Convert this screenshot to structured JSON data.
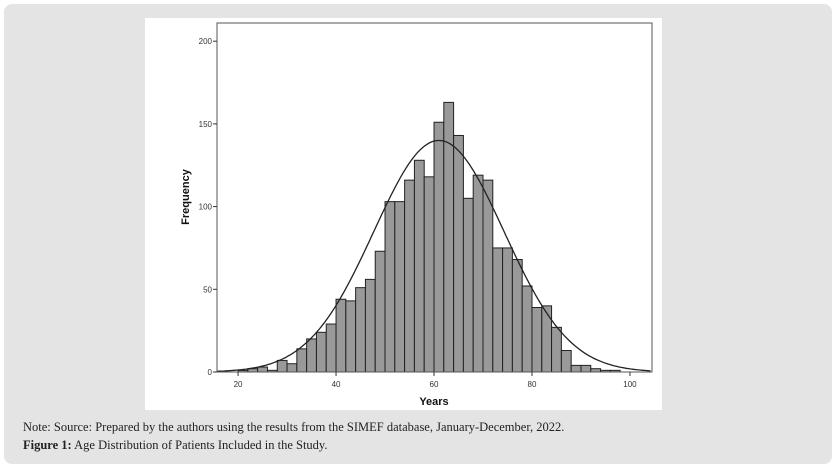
{
  "chart_data": {
    "type": "histogram",
    "title": "",
    "xlabel": "Years",
    "ylabel": "Frequency",
    "xlim": [
      15.7,
      104.5
    ],
    "ylim": [
      0,
      211
    ],
    "xticks": [
      20,
      40,
      60,
      80,
      100
    ],
    "yticks": [
      0,
      50,
      100,
      150,
      200
    ],
    "bin_width": 2,
    "bins_start": [
      18,
      20,
      22,
      24,
      26,
      28,
      30,
      32,
      34,
      36,
      38,
      40,
      42,
      44,
      46,
      48,
      50,
      52,
      54,
      56,
      58,
      60,
      62,
      64,
      66,
      68,
      70,
      72,
      74,
      76,
      78,
      80,
      82,
      84,
      86,
      88,
      90,
      92,
      94,
      96,
      98
    ],
    "values": [
      0,
      1,
      2,
      3,
      1,
      7,
      5,
      14,
      20,
      24,
      29,
      44,
      43,
      51,
      56,
      73,
      103,
      103,
      116,
      128,
      118,
      151,
      163,
      143,
      105,
      119,
      116,
      75,
      75,
      68,
      52,
      39,
      40,
      27,
      13,
      4,
      4,
      2,
      1,
      1,
      0
    ],
    "normal_curve": {
      "mean": 61,
      "sd": 13.3,
      "peak": 140
    },
    "bar_color": "#999999",
    "grid": false,
    "legend": "none"
  },
  "caption": {
    "note": "Note: Source: Prepared by the authors using the results from the SIMEF database, January-December, 2022.",
    "figure_label": "Figure 1:",
    "figure_text": " Age Distribution of Patients Included in the Study."
  }
}
